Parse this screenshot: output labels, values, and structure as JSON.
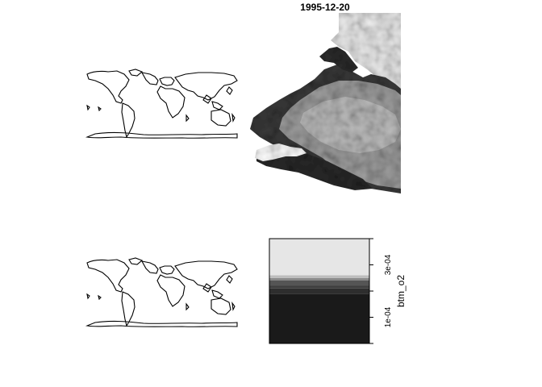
{
  "chart_data": [
    {
      "type": "map",
      "panel": "world-outline-top-left"
    },
    {
      "type": "heatmap",
      "panel": "raster-map-top-right",
      "title": "1995-12-20",
      "palette": "grayscale"
    },
    {
      "type": "map",
      "panel": "world-outline-bottom-left"
    },
    {
      "type": "heatmap",
      "panel": "colorbar-bottom-right",
      "ylabel": "btm_o2",
      "ticks": [
        {
          "value": 0.0001,
          "label": "1e-04"
        },
        {
          "value": 0.0003,
          "label": "3e-04"
        }
      ],
      "ylim": [
        0.0,
        0.0004
      ],
      "bands": [
        {
          "from": 0.0,
          "to": 0.00019,
          "color": "#1a1a1a"
        },
        {
          "from": 0.00019,
          "to": 0.00021,
          "color": "#2e2e2e"
        },
        {
          "from": 0.00021,
          "to": 0.00022,
          "color": "#3f3f3f"
        },
        {
          "from": 0.00022,
          "to": 0.00024,
          "color": "#555555"
        },
        {
          "from": 0.00024,
          "to": 0.00025,
          "color": "#8a8a8a"
        },
        {
          "from": 0.00025,
          "to": 0.00026,
          "color": "#bdbdbd"
        },
        {
          "from": 0.00026,
          "to": 0.0004,
          "color": "#e6e6e6"
        }
      ]
    }
  ],
  "colors": {
    "ink": "#000000",
    "paper": "#ffffff"
  }
}
